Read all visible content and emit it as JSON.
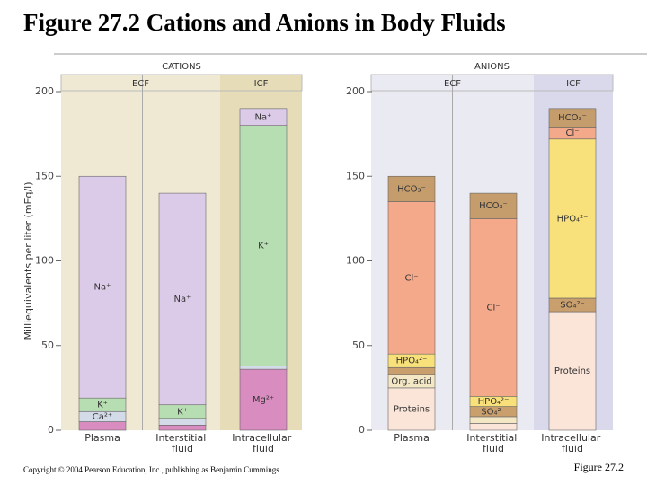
{
  "title": "Figure 27.2  Cations and Anions in Body Fluids",
  "copyright": "Copyright © 2004 Pearson Education, Inc., publishing as Benjamin Cummings",
  "figure_label": "Figure 27.2",
  "chart_data": [
    {
      "type": "stacked_bar",
      "title": "CATIONS",
      "region_labels": [
        "ECF",
        "ICF"
      ],
      "ylabel": "Milliequivalents per liter (mEq/l)",
      "categories": [
        "Plasma",
        "Interstitial fluid",
        "Intracellular fluid"
      ],
      "ylim": [
        0,
        200
      ],
      "yticks": [
        0,
        50,
        100,
        150,
        200
      ],
      "series": [
        {
          "name": "Mg²⁺",
          "color": "#d98cc0",
          "values": [
            5,
            3,
            36
          ]
        },
        {
          "name": "Ca²⁺",
          "color": "#d3dbe8",
          "values": [
            6,
            4,
            2
          ]
        },
        {
          "name": "K⁺",
          "color": "#b7ddb2",
          "values": [
            8,
            8,
            142
          ]
        },
        {
          "name": "Na⁺",
          "color": "#dccbe8",
          "values": [
            131,
            125,
            10
          ]
        }
      ]
    },
    {
      "type": "stacked_bar",
      "title": "ANIONS",
      "region_labels": [
        "ECF",
        "ICF"
      ],
      "categories": [
        "Plasma",
        "Interstitial fluid",
        "Intracellular fluid"
      ],
      "ylim": [
        0,
        200
      ],
      "yticks": [
        0,
        50,
        100,
        150,
        200
      ],
      "series": [
        {
          "name": "Proteins",
          "color": "#fbe4d8",
          "values": [
            25,
            4,
            70
          ]
        },
        {
          "name": "Org. acid",
          "color": "#f3e7c6",
          "values": [
            8,
            4,
            0
          ]
        },
        {
          "name": "SO₄²⁻",
          "color": "#c99f6e",
          "values": [
            4,
            6,
            8
          ]
        },
        {
          "name": "HPO₄²⁻",
          "color": "#f8e07a",
          "values": [
            8,
            6,
            94
          ]
        },
        {
          "name": "Cl⁻",
          "color": "#f5a98b",
          "values": [
            90,
            105,
            7
          ]
        },
        {
          "name": "HCO₃⁻",
          "color": "#c59c6c",
          "values": [
            15,
            15,
            11
          ]
        }
      ]
    }
  ]
}
